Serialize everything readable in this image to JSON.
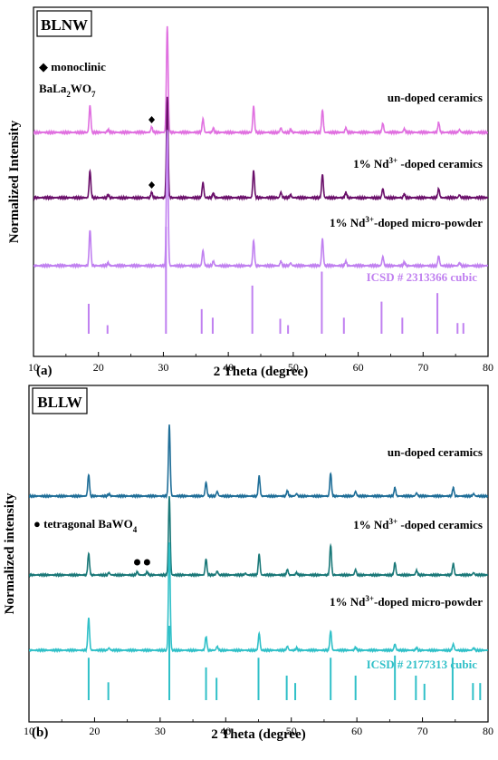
{
  "chart_data": [
    {
      "type": "line",
      "panel_label": "(a)",
      "box_title": "BLNW",
      "xlabel": "2 Theta (degree)",
      "ylabel": "Normalized Intensity",
      "xlim": [
        10,
        80
      ],
      "x_ticks": [
        10,
        20,
        30,
        40,
        50,
        60,
        70,
        80
      ],
      "grid": false,
      "legend_text": {
        "symbol": "◆",
        "line1": "monoclinic",
        "line2_main": "BaLa",
        "line2_sub1": "2",
        "line2_mid": "WO",
        "line2_sub2": "7"
      },
      "series": [
        {
          "name": "un-doped ceramics",
          "label_parts": {
            "prefix": "",
            "sup": "",
            "suffix": "un-doped ceramics"
          },
          "color": "#e070e0",
          "peaks": [
            [
              18.7,
              30
            ],
            [
              21.5,
              3
            ],
            [
              28.2,
              6
            ],
            [
              30.6,
              118
            ],
            [
              36.1,
              15
            ],
            [
              37.7,
              4
            ],
            [
              43.9,
              29
            ],
            [
              48.1,
              5
            ],
            [
              49.6,
              3
            ],
            [
              54.5,
              25
            ],
            [
              58.1,
              5
            ],
            [
              63.8,
              10
            ],
            [
              67.1,
              4
            ],
            [
              72.4,
              11
            ],
            [
              75.6,
              3
            ]
          ],
          "markers": [
            {
              "x": 28.2,
              "symbol": "diamond"
            }
          ]
        },
        {
          "name": "1% Nd3+ -doped ceramics",
          "label_parts": {
            "prefix": "1% Nd",
            "sup": "3+",
            "suffix": " -doped ceramics"
          },
          "color": "#6a0f6a",
          "peaks": [
            [
              18.7,
              30
            ],
            [
              21.5,
              3
            ],
            [
              28.2,
              6
            ],
            [
              30.6,
              112
            ],
            [
              36.1,
              17
            ],
            [
              37.7,
              5
            ],
            [
              43.9,
              30
            ],
            [
              48.1,
              6
            ],
            [
              49.6,
              3
            ],
            [
              54.5,
              26
            ],
            [
              58.1,
              6
            ],
            [
              63.8,
              10
            ],
            [
              67.1,
              4
            ],
            [
              72.4,
              10
            ],
            [
              75.6,
              3
            ]
          ],
          "markers": [
            {
              "x": 28.2,
              "symbol": "diamond"
            }
          ]
        },
        {
          "name": "1% Nd3+ -doped micro-powder",
          "label_parts": {
            "prefix": "1% Nd",
            "sup": "3+",
            "suffix": "-doped micro-powder"
          },
          "color": "#c080f0",
          "peaks": [
            [
              18.7,
              40
            ],
            [
              21.5,
              3
            ],
            [
              30.6,
              150
            ],
            [
              36.1,
              17
            ],
            [
              37.7,
              5
            ],
            [
              43.9,
              28
            ],
            [
              48.1,
              5
            ],
            [
              49.6,
              3
            ],
            [
              54.5,
              30
            ],
            [
              58.1,
              5
            ],
            [
              63.8,
              10
            ],
            [
              67.1,
              4
            ],
            [
              72.4,
              11
            ],
            [
              75.6,
              3
            ]
          ],
          "markers": []
        }
      ],
      "reference": {
        "name": "ICSD # 2313366 cubic",
        "color": "#c080f0",
        "lines": [
          [
            18.5,
            28
          ],
          [
            21.4,
            8
          ],
          [
            30.4,
            100
          ],
          [
            35.9,
            23
          ],
          [
            37.6,
            15
          ],
          [
            43.7,
            45
          ],
          [
            48.0,
            14
          ],
          [
            49.2,
            8
          ],
          [
            54.4,
            58
          ],
          [
            57.8,
            15
          ],
          [
            63.6,
            30
          ],
          [
            66.8,
            15
          ],
          [
            72.2,
            38
          ],
          [
            75.3,
            10
          ],
          [
            76.2,
            10
          ]
        ]
      }
    },
    {
      "type": "line",
      "panel_label": "(b)",
      "box_title": "BLLW",
      "xlabel": "2 Theta (degree)",
      "ylabel": "Normalized intensity",
      "xlim": [
        10,
        80
      ],
      "x_ticks": [
        10,
        20,
        30,
        40,
        50,
        60,
        70,
        80
      ],
      "grid": false,
      "legend_text": {
        "symbol": "●",
        "line1": "tetragonal BaWO",
        "line1_sub": "4"
      },
      "series": [
        {
          "name": "un-doped ceramics",
          "label_parts": {
            "prefix": "",
            "sup": "",
            "suffix": "un-doped ceramics"
          },
          "color": "#1f6e98",
          "peaks": [
            [
              19.1,
              28
            ],
            [
              22.2,
              3
            ],
            [
              31.4,
              92
            ],
            [
              37.0,
              18
            ],
            [
              38.7,
              6
            ],
            [
              45.1,
              26
            ],
            [
              49.4,
              7
            ],
            [
              50.8,
              3
            ],
            [
              56.0,
              30
            ],
            [
              59.8,
              6
            ],
            [
              65.8,
              11
            ],
            [
              69.1,
              4
            ],
            [
              74.7,
              11
            ],
            [
              77.8,
              3
            ]
          ],
          "markers": []
        },
        {
          "name": "1% Nd3+ -doped ceramics",
          "label_parts": {
            "prefix": "1% Nd",
            "sup": "3+",
            "suffix": " -doped ceramics"
          },
          "color": "#1a7878",
          "peaks": [
            [
              19.1,
              28
            ],
            [
              22.2,
              3
            ],
            [
              26.5,
              4
            ],
            [
              28.0,
              4
            ],
            [
              31.4,
              102
            ],
            [
              37.0,
              21
            ],
            [
              38.7,
              5
            ],
            [
              43.0,
              2
            ],
            [
              45.1,
              27
            ],
            [
              49.4,
              7
            ],
            [
              50.8,
              3
            ],
            [
              56.0,
              39
            ],
            [
              59.8,
              7
            ],
            [
              65.8,
              16
            ],
            [
              69.1,
              6
            ],
            [
              74.7,
              15
            ],
            [
              77.8,
              3
            ]
          ],
          "markers": [
            {
              "x": 26.5,
              "symbol": "circle"
            },
            {
              "x": 28.0,
              "symbol": "circle"
            }
          ]
        },
        {
          "name": "1% Nd3+ -doped micro-powder",
          "label_parts": {
            "prefix": "1% Nd",
            "sup": "3+",
            "suffix": "-doped micro-powder"
          },
          "color": "#30c0c8",
          "peaks": [
            [
              19.1,
              42
            ],
            [
              22.2,
              3
            ],
            [
              31.4,
              140
            ],
            [
              37.0,
              18
            ],
            [
              38.7,
              5
            ],
            [
              45.1,
              22
            ],
            [
              49.4,
              5
            ],
            [
              50.8,
              3
            ],
            [
              56.0,
              25
            ],
            [
              59.8,
              4
            ],
            [
              65.8,
              8
            ],
            [
              69.1,
              3
            ],
            [
              74.7,
              8
            ],
            [
              77.8,
              3
            ]
          ],
          "markers": []
        }
      ],
      "reference": {
        "name": "ICSD # 2177313 cubic",
        "color": "#30c0c8",
        "lines": [
          [
            19.1,
            57
          ],
          [
            22.1,
            24
          ],
          [
            31.4,
            100
          ],
          [
            37.0,
            44
          ],
          [
            38.6,
            30
          ],
          [
            45.0,
            57
          ],
          [
            49.3,
            33
          ],
          [
            50.6,
            23
          ],
          [
            56.0,
            57
          ],
          [
            59.8,
            33
          ],
          [
            65.8,
            60
          ],
          [
            69.0,
            33
          ],
          [
            70.3,
            22
          ],
          [
            74.6,
            57
          ],
          [
            77.7,
            23
          ],
          [
            78.8,
            23
          ]
        ]
      }
    }
  ]
}
